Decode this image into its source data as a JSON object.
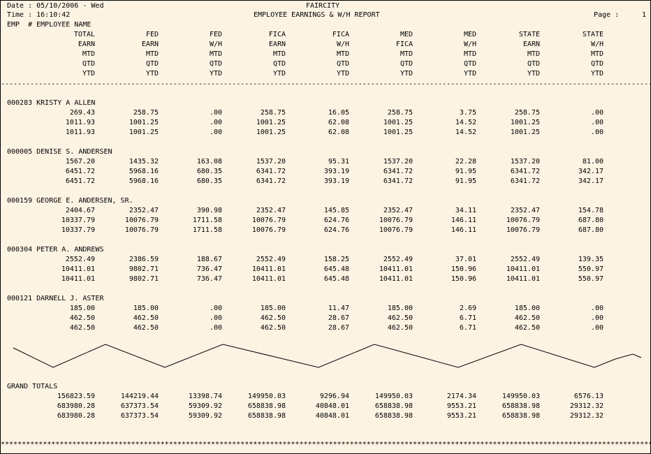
{
  "header": {
    "date": "Date : 05/10/2006 - Wed",
    "time": "Time : 16:10:42",
    "company": "FAIRCITY",
    "report_title": "EMPLOYEE EARNINGS & W/H REPORT",
    "page_label": "Page :",
    "page_number": "1",
    "emp_label": "EMP  # EMPLOYEE NAME"
  },
  "columns": [
    [
      "TOTAL",
      "EARN",
      "MTD",
      "QTD",
      "YTD"
    ],
    [
      "FED",
      "EARN",
      "MTD",
      "QTD",
      "YTD"
    ],
    [
      "FED",
      "W/H",
      "MTD",
      "QTD",
      "YTD"
    ],
    [
      "FICA",
      "EARN",
      "MTD",
      "QTD",
      "YTD"
    ],
    [
      "FICA",
      "W/H",
      "MTD",
      "QTD",
      "YTD"
    ],
    [
      "MED",
      "FICA",
      "MTD",
      "QTD",
      "YTD"
    ],
    [
      "MED",
      "W/H",
      "MTD",
      "QTD",
      "YTD"
    ],
    [
      "STATE",
      "EARN",
      "MTD",
      "QTD",
      "YTD"
    ],
    [
      "STATE",
      "W/H",
      "MTD",
      "QTD",
      "YTD"
    ]
  ],
  "employees": [
    {
      "name": "000283 KRISTY A ALLEN",
      "rows": [
        [
          "269.43",
          "258.75",
          ".00",
          "258.75",
          "16.05",
          "258.75",
          "3.75",
          "258.75",
          ".00"
        ],
        [
          "1011.93",
          "1001.25",
          ".00",
          "1001.25",
          "62.08",
          "1001.25",
          "14.52",
          "1001.25",
          ".00"
        ],
        [
          "1011.93",
          "1001.25",
          ".00",
          "1001.25",
          "62.08",
          "1001.25",
          "14.52",
          "1001.25",
          ".00"
        ]
      ]
    },
    {
      "name": "000005 DENISE S. ANDERSEN",
      "rows": [
        [
          "1567.20",
          "1435.32",
          "163.08",
          "1537.20",
          "95.31",
          "1537.20",
          "22.28",
          "1537.20",
          "81.00"
        ],
        [
          "6451.72",
          "5968.16",
          "680.35",
          "6341.72",
          "393.19",
          "6341.72",
          "91.95",
          "6341.72",
          "342.17"
        ],
        [
          "6451.72",
          "5968.16",
          "680.35",
          "6341.72",
          "393.19",
          "6341.72",
          "91.95",
          "6341.72",
          "342.17"
        ]
      ]
    },
    {
      "name": "000159 GEORGE E. ANDERSEN, SR.",
      "rows": [
        [
          "2404.67",
          "2352.47",
          "390.98",
          "2352.47",
          "145.85",
          "2352.47",
          "34.11",
          "2352.47",
          "154.78"
        ],
        [
          "10337.79",
          "10076.79",
          "1711.58",
          "10076.79",
          "624.76",
          "10076.79",
          "146.11",
          "10076.79",
          "687.80"
        ],
        [
          "10337.79",
          "10076.79",
          "1711.58",
          "10076.79",
          "624.76",
          "10076.79",
          "146.11",
          "10076.79",
          "687.80"
        ]
      ]
    },
    {
      "name": "000304 PETER A. ANDREWS",
      "rows": [
        [
          "2552.49",
          "2386.59",
          "188.67",
          "2552.49",
          "158.25",
          "2552.49",
          "37.01",
          "2552.49",
          "139.35"
        ],
        [
          "10411.01",
          "9802.71",
          "736.47",
          "10411.01",
          "645.48",
          "10411.01",
          "150.96",
          "10411.01",
          "550.97"
        ],
        [
          "10411.01",
          "9802.71",
          "736.47",
          "10411.01",
          "645.48",
          "10411.01",
          "150.96",
          "10411.01",
          "550.97"
        ]
      ]
    },
    {
      "name": "000121 DARNELL J. ASTER",
      "rows": [
        [
          "185.00",
          "185.00",
          ".00",
          "185.00",
          "11.47",
          "185.00",
          "2.69",
          "185.00",
          ".00"
        ],
        [
          "462.50",
          "462.50",
          ".00",
          "462.50",
          "28.67",
          "462.50",
          "6.71",
          "462.50",
          ".00"
        ],
        [
          "462.50",
          "462.50",
          ".00",
          "462.50",
          "28.67",
          "462.50",
          "6.71",
          "462.50",
          ".00"
        ]
      ]
    }
  ],
  "grand_totals": {
    "label": "GRAND TOTALS",
    "rows": [
      [
        "156823.59",
        "144219.44",
        "13398.74",
        "149950.03",
        "9296.94",
        "149950.03",
        "2174.34",
        "149950.03",
        "6576.13"
      ],
      [
        "683980.28",
        "637373.54",
        "59309.92",
        "658838.98",
        "40848.01",
        "658838.98",
        "9553.21",
        "658838.98",
        "29312.32"
      ],
      [
        "683980.28",
        "637373.54",
        "59309.92",
        "658838.98",
        "40848.01",
        "658838.98",
        "9553.21",
        "658838.98",
        "29312.32"
      ]
    ]
  }
}
